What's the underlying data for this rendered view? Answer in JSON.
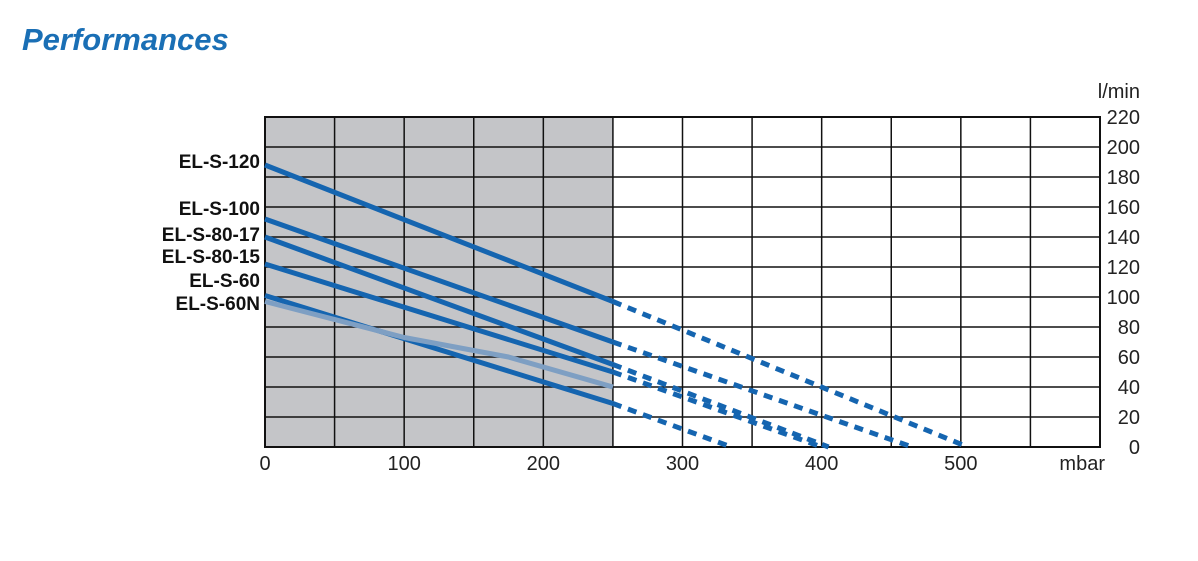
{
  "title": "Performances",
  "colors": {
    "title": "#1a6fb5",
    "line": "#1565b0",
    "line_60n": "#7e9fc3",
    "shaded": "#c4c5c8",
    "grid": "#111111"
  },
  "chart_data": {
    "type": "line",
    "title": "Performances",
    "xlabel": "mbar",
    "ylabel": "l/min",
    "xlim": [
      0,
      600
    ],
    "ylim": [
      0,
      220
    ],
    "x_ticks": [
      "0",
      "100",
      "200",
      "300",
      "400",
      "500"
    ],
    "y_ticks": [
      "220",
      "200",
      "180",
      "160",
      "140",
      "120",
      "100",
      "80",
      "60",
      "40",
      "20",
      "0"
    ],
    "shaded_region": [
      0,
      250
    ],
    "solid_until": 250,
    "grid": true,
    "series": [
      {
        "name": "EL-S-120",
        "points": [
          [
            0,
            188
          ],
          [
            250,
            97
          ],
          [
            505,
            0
          ]
        ]
      },
      {
        "name": "EL-S-100",
        "points": [
          [
            0,
            152
          ],
          [
            250,
            70
          ],
          [
            465,
            0
          ]
        ]
      },
      {
        "name": "EL-S-80-17",
        "points": [
          [
            0,
            140
          ],
          [
            250,
            55
          ],
          [
            405,
            0
          ]
        ]
      },
      {
        "name": "EL-S-80-15",
        "points": [
          [
            0,
            122
          ],
          [
            250,
            50
          ],
          [
            400,
            0
          ]
        ]
      },
      {
        "name": "EL-S-60",
        "points": [
          [
            0,
            101
          ],
          [
            250,
            29
          ],
          [
            335,
            0
          ]
        ]
      },
      {
        "name": "EL-S-60N",
        "points": [
          [
            0,
            97
          ],
          [
            100,
            73
          ],
          [
            175,
            60
          ],
          [
            250,
            40
          ]
        ]
      }
    ]
  }
}
